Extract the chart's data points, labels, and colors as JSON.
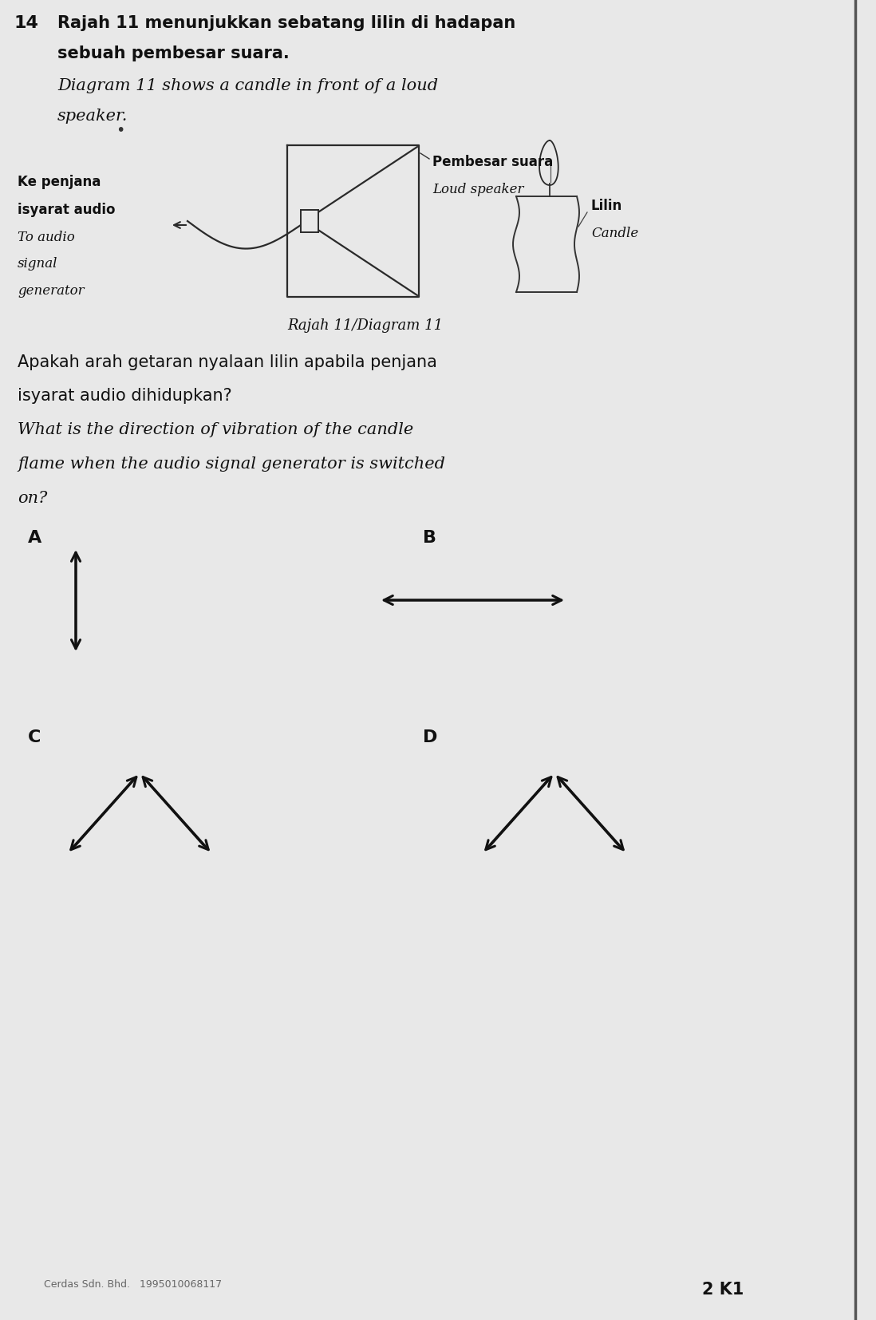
{
  "bg_color": "#e8e8e8",
  "text_color": "#1a1a1a",
  "question_number": "14",
  "line1_malay": "Rajah 11 menunjukkan sebatang lilin di hadapan",
  "line2_malay": "sebuah pembesar suara.",
  "line1_eng": "Diagram 11 shows a candle in front of a loud",
  "line2_eng": "speaker.",
  "diagram_label": "Rajah 11/Diagram 11",
  "pembesar_suara": "Pembesar suara",
  "loud_speaker": "Loud speaker",
  "ke_penjana": "Ke penjana",
  "isyarat_audio": "isyarat audio",
  "to_audio": "To audio",
  "signal": "signal",
  "generator": "generator",
  "lilin": "Lilin",
  "candle": "Candle",
  "question_malay1": "Apakah arah getaran nyalaan lilin apabila penjana",
  "question_malay2": "isyarat audio dihidupkan?",
  "question_eng1": "What is the direction of vibration of the candle",
  "question_eng2": "flame when the audio signal generator is switched",
  "question_eng3": "on?",
  "option_A": "A",
  "option_B": "B",
  "option_C": "C",
  "option_D": "D",
  "footer": "2 K1",
  "publisher": "Cerdas Sdn. Bhd.   1995010068117"
}
